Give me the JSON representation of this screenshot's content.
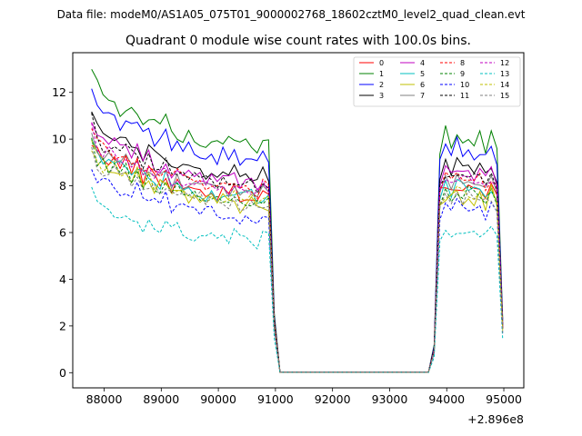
{
  "suptitle": "Data file: modeM0/AS1A05_075T01_9000002768_18602cztM0_level2_quad_clean.evt",
  "chart_data": {
    "type": "line",
    "title": "Quadrant 0 module wise count rates with 100.0s bins.",
    "xlabel": "",
    "ylabel": "",
    "x_offset_label": "+2.896e8",
    "xlim": [
      87450,
      95350
    ],
    "ylim": [
      -0.65,
      13.7
    ],
    "xticks": [
      88000,
      89000,
      90000,
      91000,
      92000,
      93000,
      94000,
      95000
    ],
    "xtick_labels": [
      "88000",
      "89000",
      "90000",
      "91000",
      "92000",
      "93000",
      "94000",
      "95000"
    ],
    "yticks": [
      0,
      2,
      4,
      6,
      8,
      10,
      12
    ],
    "ytick_labels": [
      "0",
      "2",
      "4",
      "6",
      "8",
      "10",
      "12"
    ],
    "x_start": 87780,
    "x_step": 100,
    "legend": {
      "location": "upper-right",
      "columns": 4
    },
    "base_profile": [
      10.9,
      10.15,
      9.85,
      9.8,
      9.75,
      9.55,
      9.65,
      9.35,
      9.5,
      9.05,
      9.25,
      8.95,
      8.8,
      9.05,
      8.6,
      8.75,
      8.5,
      8.55,
      8.4,
      8.5,
      8.3,
      8.45,
      8.15,
      8.35,
      8.2,
      8.4,
      8.05,
      8.15,
      8.2,
      7.95,
      8.3,
      8.1,
      2.2,
      0.02,
      0.02,
      0.02,
      0.02,
      0.02,
      0.02,
      0.02,
      0.02,
      0.02,
      0.02,
      0.02,
      0.02,
      0.02,
      0.02,
      0.02,
      0.02,
      0.02,
      0.02,
      0.02,
      0.02,
      0.02,
      0.02,
      0.02,
      0.02,
      0.02,
      0.02,
      0.02,
      1.0,
      8.2,
      8.6,
      8.35,
      8.75,
      8.5,
      8.65,
      8.35,
      8.55,
      8.2,
      8.6,
      8.1,
      2.0
    ],
    "series": [
      {
        "name": "0",
        "color": "#ff0000",
        "dashed": false,
        "scale": 0.93,
        "jitter": 0.35
      },
      {
        "name": "1",
        "color": "#008000",
        "dashed": false,
        "scale": 1.19,
        "jitter": 0.45
      },
      {
        "name": "2",
        "color": "#0000ff",
        "dashed": false,
        "scale": 1.12,
        "jitter": 0.35
      },
      {
        "name": "3",
        "color": "#000000",
        "dashed": false,
        "scale": 1.03,
        "jitter": 0.3
      },
      {
        "name": "4",
        "color": "#bf00bf",
        "dashed": false,
        "scale": 1.0,
        "jitter": 0.3
      },
      {
        "name": "5",
        "color": "#00bfbf",
        "dashed": false,
        "scale": 0.92,
        "jitter": 0.35
      },
      {
        "name": "6",
        "color": "#bfbf00",
        "dashed": false,
        "scale": 0.89,
        "jitter": 0.45
      },
      {
        "name": "7",
        "color": "#808080",
        "dashed": false,
        "scale": 0.95,
        "jitter": 0.3
      },
      {
        "name": "8",
        "color": "#ff0000",
        "dashed": true,
        "scale": 0.97,
        "jitter": 0.3
      },
      {
        "name": "9",
        "color": "#008000",
        "dashed": true,
        "scale": 0.9,
        "jitter": 0.3
      },
      {
        "name": "10",
        "color": "#0000ff",
        "dashed": true,
        "scale": 0.82,
        "jitter": 0.35
      },
      {
        "name": "11",
        "color": "#000000",
        "dashed": true,
        "scale": 0.99,
        "jitter": 0.3
      },
      {
        "name": "12",
        "color": "#bf00bf",
        "dashed": true,
        "scale": 0.96,
        "jitter": 0.3
      },
      {
        "name": "13",
        "color": "#00bfbf",
        "dashed": true,
        "scale": 0.7,
        "jitter": 0.35
      },
      {
        "name": "14",
        "color": "#bfbf00",
        "dashed": true,
        "scale": 0.9,
        "jitter": 0.3
      },
      {
        "name": "15",
        "color": "#808080",
        "dashed": true,
        "scale": 0.88,
        "jitter": 0.3
      }
    ]
  }
}
